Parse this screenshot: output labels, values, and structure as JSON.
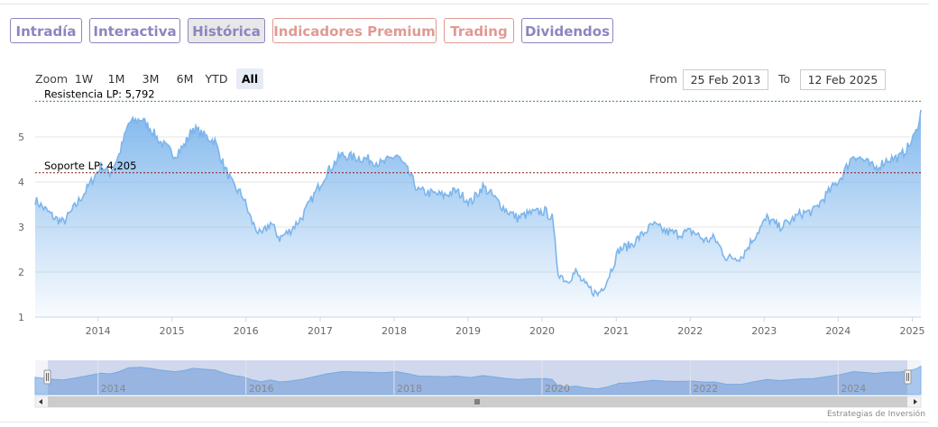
{
  "tabs": [
    {
      "label": "Intradía",
      "active": false,
      "premium": false
    },
    {
      "label": "Interactiva",
      "active": false,
      "premium": false
    },
    {
      "label": "Histórica",
      "active": true,
      "premium": false
    },
    {
      "label": "Indicadores Premium",
      "active": false,
      "premium": true
    },
    {
      "label": "Trading",
      "active": false,
      "premium": true
    },
    {
      "label": "Dividendos",
      "active": false,
      "premium": false
    }
  ],
  "zoom": {
    "label": "Zoom",
    "buttons": [
      "1W",
      "1M",
      "3M",
      "6M",
      "YTD",
      "All"
    ],
    "selected": "All"
  },
  "range": {
    "from_label": "From",
    "from_value": "25 Feb 2013",
    "to_label": "To",
    "to_value": "12 Feb 2025"
  },
  "credit": "Estrategias de Inversión",
  "colors": {
    "line": "#7cb5ec",
    "resistance": "#2e8b57",
    "support": "#8b1a1a",
    "tab": "#8b86bf",
    "tab_premium": "#e09a93"
  },
  "chart_data": {
    "type": "area",
    "x_start": "2013-02-25",
    "x_end": "2025-02-12",
    "ylim": [
      1,
      5.8
    ],
    "y_ticks": [
      "1",
      "2",
      "3",
      "4",
      "5"
    ],
    "x_ticks": [
      "2014",
      "2015",
      "2016",
      "2017",
      "2018",
      "2019",
      "2020",
      "2021",
      "2022",
      "2023",
      "2024",
      "2025"
    ],
    "navigator_ticks": [
      "2014",
      "2016",
      "2018",
      "2020",
      "2022",
      "2024"
    ],
    "grid": true,
    "annotations": [
      {
        "text": "Resistencia LP: 5,792",
        "y": 5.792
      },
      {
        "text": "Soporte LP: 4,205",
        "y": 4.205
      }
    ],
    "series": [
      {
        "points": [
          [
            "2013-02-25",
            3.6
          ],
          [
            "2013-04-01",
            3.45
          ],
          [
            "2013-06-01",
            3.2
          ],
          [
            "2013-07-15",
            3.1
          ],
          [
            "2013-09-01",
            3.4
          ],
          [
            "2013-11-01",
            3.8
          ],
          [
            "2014-01-15",
            4.35
          ],
          [
            "2014-03-01",
            4.2
          ],
          [
            "2014-04-15",
            4.6
          ],
          [
            "2014-06-01",
            5.3
          ],
          [
            "2014-08-01",
            5.4
          ],
          [
            "2014-09-15",
            5.2
          ],
          [
            "2014-11-01",
            4.9
          ],
          [
            "2015-01-15",
            4.6
          ],
          [
            "2015-03-01",
            4.8
          ],
          [
            "2015-04-15",
            5.2
          ],
          [
            "2015-06-01",
            5.05
          ],
          [
            "2015-08-01",
            4.9
          ],
          [
            "2015-09-15",
            4.35
          ],
          [
            "2015-11-01",
            3.9
          ],
          [
            "2015-12-15",
            3.7
          ],
          [
            "2016-02-01",
            3.1
          ],
          [
            "2016-03-15",
            2.8
          ],
          [
            "2016-05-01",
            3.1
          ],
          [
            "2016-06-15",
            2.75
          ],
          [
            "2016-08-01",
            2.9
          ],
          [
            "2016-10-01",
            3.2
          ],
          [
            "2016-12-01",
            3.7
          ],
          [
            "2017-02-01",
            4.2
          ],
          [
            "2017-04-15",
            4.6
          ],
          [
            "2017-06-15",
            4.55
          ],
          [
            "2017-09-01",
            4.5
          ],
          [
            "2017-11-01",
            4.4
          ],
          [
            "2018-01-15",
            4.6
          ],
          [
            "2018-03-15",
            4.2
          ],
          [
            "2018-05-01",
            3.8
          ],
          [
            "2018-07-01",
            3.75
          ],
          [
            "2018-09-01",
            3.7
          ],
          [
            "2018-11-01",
            3.8
          ],
          [
            "2019-01-15",
            3.55
          ],
          [
            "2019-03-15",
            3.9
          ],
          [
            "2019-05-01",
            3.7
          ],
          [
            "2019-07-01",
            3.4
          ],
          [
            "2019-09-01",
            3.2
          ],
          [
            "2019-11-01",
            3.3
          ],
          [
            "2020-01-15",
            3.35
          ],
          [
            "2020-02-20",
            3.2
          ],
          [
            "2020-03-20",
            2.0
          ],
          [
            "2020-05-01",
            1.8
          ],
          [
            "2020-06-15",
            2.0
          ],
          [
            "2020-08-01",
            1.7
          ],
          [
            "2020-10-01",
            1.5
          ],
          [
            "2020-11-15",
            1.8
          ],
          [
            "2021-01-15",
            2.5
          ],
          [
            "2021-03-15",
            2.6
          ],
          [
            "2021-05-01",
            2.8
          ],
          [
            "2021-07-01",
            3.05
          ],
          [
            "2021-09-01",
            2.9
          ],
          [
            "2021-11-01",
            2.85
          ],
          [
            "2022-01-15",
            2.9
          ],
          [
            "2022-03-15",
            2.7
          ],
          [
            "2022-05-01",
            2.75
          ],
          [
            "2022-07-01",
            2.3
          ],
          [
            "2022-09-15",
            2.35
          ],
          [
            "2022-11-01",
            2.7
          ],
          [
            "2023-01-15",
            3.2
          ],
          [
            "2023-03-15",
            3.0
          ],
          [
            "2023-05-01",
            3.1
          ],
          [
            "2023-07-01",
            3.3
          ],
          [
            "2023-09-01",
            3.35
          ],
          [
            "2023-11-01",
            3.7
          ],
          [
            "2024-01-15",
            4.1
          ],
          [
            "2024-03-15",
            4.6
          ],
          [
            "2024-05-01",
            4.5
          ],
          [
            "2024-07-01",
            4.3
          ],
          [
            "2024-09-01",
            4.5
          ],
          [
            "2024-11-01",
            4.55
          ],
          [
            "2024-12-15",
            4.8
          ],
          [
            "2025-01-20",
            5.1
          ],
          [
            "2025-02-12",
            5.6
          ]
        ]
      }
    ]
  }
}
